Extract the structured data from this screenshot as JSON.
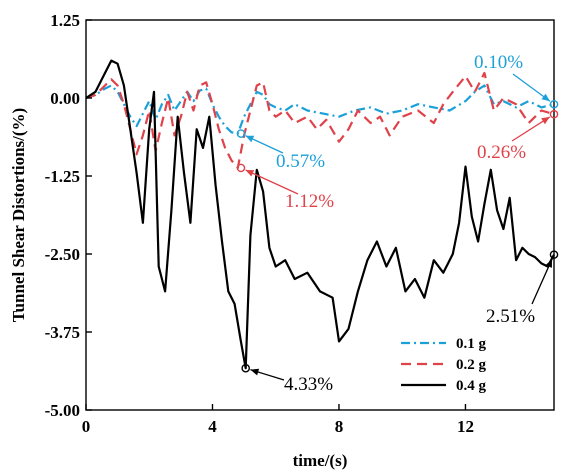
{
  "chart_data": {
    "type": "line",
    "title": "",
    "xlabel": "time/(s)",
    "ylabel": "Tunnel Shear Distortions/(%)",
    "xlim": [
      0,
      14.8
    ],
    "ylim": [
      -5.0,
      1.25
    ],
    "xticks": [
      0,
      4,
      8,
      12
    ],
    "xtick_labels": [
      "0",
      "4",
      "8",
      "12"
    ],
    "yticks": [
      1.25,
      0.0,
      -1.25,
      -2.5,
      -3.75,
      -5.0
    ],
    "ytick_labels": [
      "1.25",
      "0.00",
      "-1.25",
      "-2.50",
      "-3.75",
      "-5.00"
    ],
    "grid": false,
    "legend_position": "bottom-right",
    "series": [
      {
        "name": "0.1 g",
        "color": "#1ca0d8",
        "dash": "dashdot",
        "x": [
          0,
          0.3,
          0.6,
          0.8,
          1.0,
          1.2,
          1.4,
          1.6,
          1.8,
          2.0,
          2.2,
          2.4,
          2.6,
          2.8,
          3.0,
          3.2,
          3.4,
          3.6,
          3.8,
          4.0,
          4.2,
          4.4,
          4.6,
          4.8,
          5.0,
          5.2,
          5.4,
          5.6,
          5.8,
          6.0,
          6.3,
          6.6,
          7.0,
          7.5,
          8.0,
          8.5,
          9.0,
          9.5,
          10.0,
          10.5,
          11.0,
          11.5,
          12.0,
          12.3,
          12.6,
          12.9,
          13.2,
          13.6,
          14.0,
          14.4,
          14.8
        ],
        "y": [
          0,
          0.05,
          0.15,
          0.2,
          0.1,
          -0.1,
          -0.3,
          -0.45,
          -0.25,
          -0.05,
          -0.35,
          -0.1,
          0.05,
          -0.2,
          -0.05,
          0.1,
          -0.05,
          0.12,
          0.15,
          -0.1,
          -0.3,
          -0.45,
          -0.55,
          -0.57,
          -0.3,
          -0.1,
          0.1,
          0.05,
          -0.1,
          -0.15,
          -0.2,
          -0.1,
          -0.2,
          -0.25,
          -0.3,
          -0.2,
          -0.15,
          -0.25,
          -0.2,
          -0.1,
          -0.15,
          -0.2,
          -0.05,
          0.1,
          0.2,
          -0.1,
          -0.05,
          -0.15,
          -0.05,
          -0.15,
          -0.1
        ]
      },
      {
        "name": "0.2 g",
        "color": "#e0424a",
        "dash": "dash",
        "x": [
          0,
          0.3,
          0.6,
          0.8,
          1.0,
          1.2,
          1.4,
          1.6,
          1.8,
          2.0,
          2.2,
          2.4,
          2.6,
          2.8,
          3.0,
          3.2,
          3.4,
          3.6,
          3.8,
          4.0,
          4.2,
          4.4,
          4.6,
          4.8,
          5.0,
          5.2,
          5.4,
          5.6,
          5.8,
          6.0,
          6.3,
          6.6,
          7.0,
          7.3,
          7.6,
          8.0,
          8.3,
          8.6,
          9.0,
          9.3,
          9.6,
          10.0,
          10.5,
          11.0,
          11.3,
          11.6,
          12.0,
          12.3,
          12.6,
          12.9,
          13.2,
          13.6,
          14.0,
          14.4,
          14.8
        ],
        "y": [
          0,
          0.05,
          0.2,
          0.3,
          0.2,
          -0.1,
          -0.5,
          -0.9,
          -0.6,
          -0.2,
          -0.85,
          -0.4,
          0.0,
          -0.6,
          -0.3,
          0.1,
          -0.2,
          0.2,
          0.25,
          -0.1,
          -0.5,
          -0.8,
          -1.0,
          -1.12,
          -0.6,
          -0.2,
          0.2,
          0.25,
          -0.2,
          -0.3,
          -0.2,
          -0.4,
          -0.3,
          -0.5,
          -0.35,
          -0.7,
          -0.5,
          -0.2,
          -0.4,
          -0.3,
          -0.6,
          -0.3,
          -0.2,
          -0.4,
          -0.1,
          0.1,
          0.35,
          0.1,
          0.4,
          -0.2,
          0.0,
          -0.1,
          -0.4,
          -0.2,
          -0.26
        ]
      },
      {
        "name": "0.4 g",
        "color": "#000000",
        "dash": "solid",
        "x": [
          0,
          0.3,
          0.6,
          0.8,
          1.0,
          1.2,
          1.4,
          1.6,
          1.8,
          2.0,
          2.15,
          2.3,
          2.5,
          2.7,
          2.9,
          3.1,
          3.3,
          3.5,
          3.7,
          3.9,
          4.1,
          4.3,
          4.5,
          4.7,
          4.9,
          5.05,
          5.2,
          5.4,
          5.6,
          5.8,
          6.0,
          6.3,
          6.6,
          7.0,
          7.4,
          7.8,
          8.0,
          8.3,
          8.6,
          8.9,
          9.2,
          9.5,
          9.8,
          10.1,
          10.4,
          10.7,
          11.0,
          11.3,
          11.6,
          11.8,
          12.0,
          12.2,
          12.4,
          12.6,
          12.8,
          13.0,
          13.2,
          13.4,
          13.6,
          13.8,
          14.0,
          14.2,
          14.4,
          14.6,
          14.8
        ],
        "y": [
          0,
          0.1,
          0.4,
          0.6,
          0.55,
          0.2,
          -0.5,
          -1.2,
          -2.0,
          -0.5,
          0.1,
          -2.7,
          -3.1,
          -1.8,
          -0.3,
          -1.2,
          -2.0,
          -0.5,
          -0.8,
          -0.3,
          -1.4,
          -2.3,
          -3.1,
          -3.3,
          -3.9,
          -4.33,
          -2.2,
          -1.15,
          -1.5,
          -2.4,
          -2.7,
          -2.6,
          -2.9,
          -2.8,
          -3.1,
          -3.2,
          -3.9,
          -3.7,
          -3.1,
          -2.6,
          -2.3,
          -2.7,
          -2.4,
          -3.1,
          -2.9,
          -3.2,
          -2.6,
          -2.8,
          -2.5,
          -2.0,
          -1.1,
          -1.9,
          -2.3,
          -1.7,
          -1.15,
          -1.8,
          -2.1,
          -1.6,
          -2.6,
          -2.4,
          -2.5,
          -2.55,
          -2.65,
          -2.7,
          -2.51
        ]
      }
    ],
    "annotations": [
      {
        "text": "0.10%",
        "series": "0.1 g",
        "color": "#1ca0d8",
        "point": [
          14.8,
          -0.1
        ]
      },
      {
        "text": "0.57%",
        "series": "0.1 g",
        "color": "#1ca0d8",
        "point": [
          4.9,
          -0.57
        ]
      },
      {
        "text": "1.12%",
        "series": "0.2 g",
        "color": "#e0424a",
        "point": [
          4.9,
          -1.12
        ]
      },
      {
        "text": "0.26%",
        "series": "0.2 g",
        "color": "#e0424a",
        "point": [
          14.8,
          -0.26
        ]
      },
      {
        "text": "4.33%",
        "series": "0.4 g",
        "color": "#000000",
        "point": [
          5.05,
          -4.33
        ]
      },
      {
        "text": "2.51%",
        "series": "0.4 g",
        "color": "#000000",
        "point": [
          14.8,
          -2.51
        ]
      }
    ]
  }
}
